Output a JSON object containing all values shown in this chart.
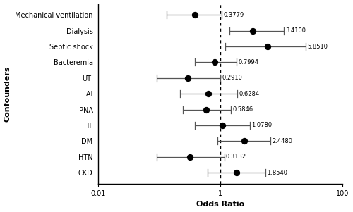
{
  "variables": [
    "Mechanical ventilation",
    "Dialysis",
    "Septic shock",
    "Bacteremia",
    "UTI",
    "IAI",
    "PNA",
    "HF",
    "DM",
    "HTN",
    "CKD"
  ],
  "or_values": [
    0.3779,
    3.41,
    5.851,
    0.7994,
    0.291,
    0.6284,
    0.5846,
    1.078,
    2.448,
    0.3132,
    1.854
  ],
  "ci_low": [
    0.13,
    1.4,
    1.2,
    0.38,
    0.09,
    0.22,
    0.24,
    0.38,
    0.9,
    0.09,
    0.62
  ],
  "ci_high": [
    1.05,
    11.0,
    25.0,
    1.85,
    1.0,
    1.9,
    1.5,
    3.0,
    6.6,
    1.15,
    5.5
  ],
  "xlabel": "Odds Ratio",
  "ylabel": "Confounders",
  "xlim_log": [
    0.01,
    100
  ],
  "ref_line": 1.0,
  "dot_color": "black",
  "dot_size": 45,
  "line_color": "#555555",
  "cap_color": "#555555",
  "background_color": "white",
  "label_fontsize": 7,
  "tick_fontsize": 7,
  "axis_label_fontsize": 8,
  "or_label_fontsize": 6
}
